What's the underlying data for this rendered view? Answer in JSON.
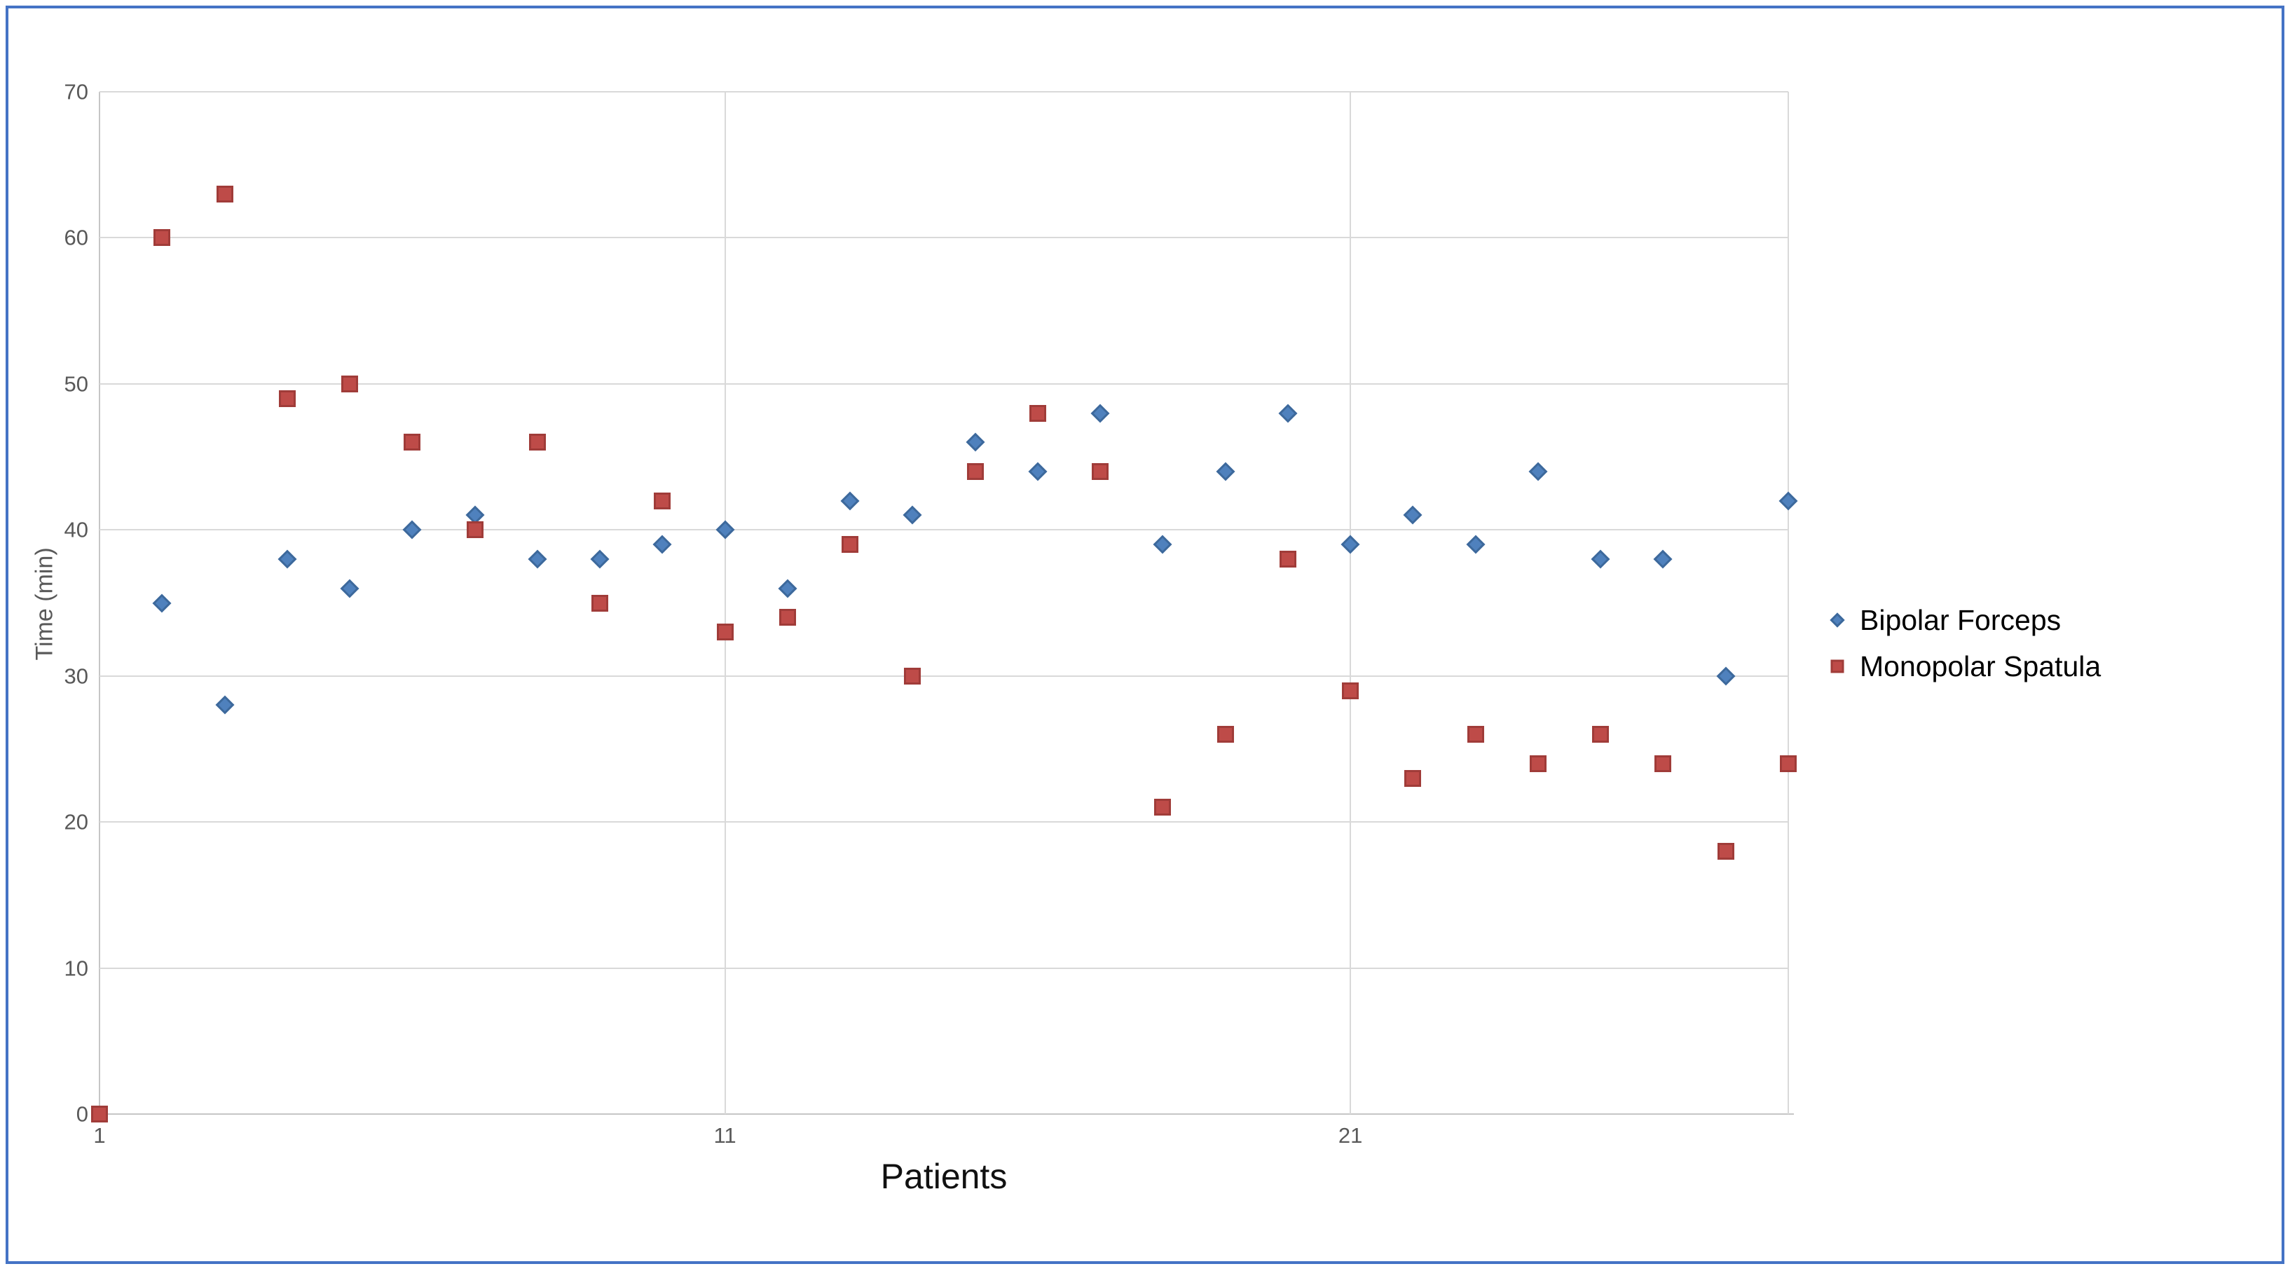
{
  "colors": {
    "frame_border": "#4473c5",
    "gridline": "#d9d9d9",
    "axis_line": "#c6c6c6",
    "tick_label": "#595959",
    "axis_title": "#595959",
    "x_title": "#111111",
    "bipolar_fill": "#4f81bd",
    "bipolar_border": "#3d699c",
    "monopolar_fill": "#be4b48",
    "monopolar_border": "#a03c39"
  },
  "chart_data": {
    "type": "scatter",
    "title": "",
    "xlabel": "Patients",
    "ylabel": "Time  (min)",
    "xlim": [
      1,
      28
    ],
    "ylim": [
      0,
      70
    ],
    "y_ticks": [
      0,
      10,
      20,
      30,
      40,
      50,
      60,
      70
    ],
    "x_ticks": [
      1,
      11,
      21
    ],
    "x_gridlines": [
      11,
      21,
      28
    ],
    "grid": "horizontal-and-x-ticks",
    "legend_position": "right",
    "series": [
      {
        "name": "Bipolar Forceps",
        "marker": "diamond",
        "color": "#4f81bd",
        "points": [
          [
            2,
            35
          ],
          [
            3,
            28
          ],
          [
            4,
            38
          ],
          [
            5,
            36
          ],
          [
            6,
            40
          ],
          [
            7,
            41
          ],
          [
            8,
            38
          ],
          [
            9,
            38
          ],
          [
            10,
            39
          ],
          [
            11,
            40
          ],
          [
            12,
            36
          ],
          [
            13,
            42
          ],
          [
            14,
            41
          ],
          [
            15,
            46
          ],
          [
            16,
            44
          ],
          [
            17,
            48
          ],
          [
            18,
            39
          ],
          [
            19,
            44
          ],
          [
            20,
            48
          ],
          [
            21,
            39
          ],
          [
            22,
            41
          ],
          [
            23,
            39
          ],
          [
            24,
            44
          ],
          [
            25,
            38
          ],
          [
            26,
            38
          ],
          [
            27,
            30
          ],
          [
            28,
            42
          ]
        ]
      },
      {
        "name": "Monopolar Spatula",
        "marker": "square",
        "color": "#be4b48",
        "points": [
          [
            1,
            0
          ],
          [
            2,
            60
          ],
          [
            3,
            63
          ],
          [
            4,
            49
          ],
          [
            5,
            50
          ],
          [
            6,
            46
          ],
          [
            7,
            40
          ],
          [
            8,
            46
          ],
          [
            9,
            35
          ],
          [
            10,
            42
          ],
          [
            11,
            33
          ],
          [
            12,
            34
          ],
          [
            13,
            39
          ],
          [
            14,
            30
          ],
          [
            15,
            44
          ],
          [
            16,
            48
          ],
          [
            17,
            44
          ],
          [
            18,
            21
          ],
          [
            19,
            26
          ],
          [
            20,
            38
          ],
          [
            21,
            29
          ],
          [
            22,
            23
          ],
          [
            23,
            26
          ],
          [
            24,
            24
          ],
          [
            25,
            26
          ],
          [
            26,
            24
          ],
          [
            27,
            18
          ],
          [
            28,
            24
          ]
        ]
      }
    ]
  }
}
